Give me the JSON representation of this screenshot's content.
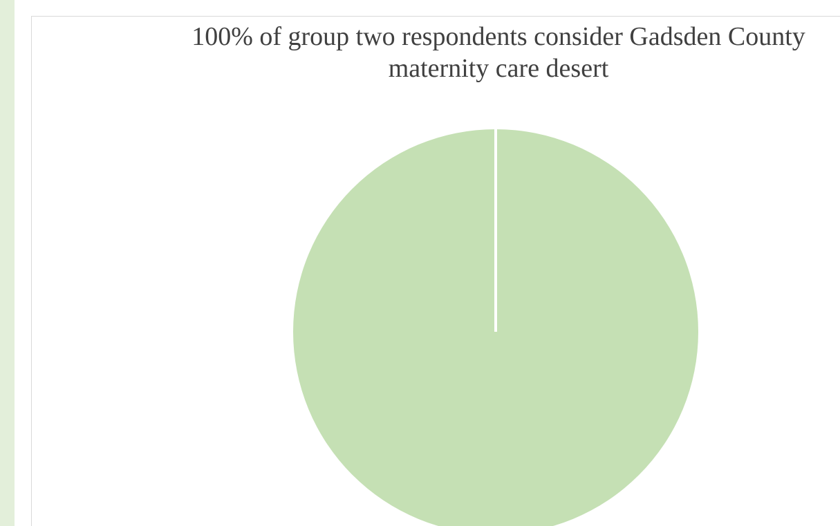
{
  "colors": {
    "sidebar": "#e3efda",
    "slice": "#c5e0b4",
    "separator": "#ffffff",
    "title_text": "#404040",
    "frame_border": "#d9d9d9"
  },
  "chart_data": {
    "type": "pie",
    "title": "100% of group two respondents consider Gadsden County maternity care desert",
    "title_lines": [
      "100% of group two respondents consider Gadsden County",
      "maternity care desert"
    ],
    "slices": [
      {
        "value": 100,
        "color": "#c5e0b4"
      },
      {
        "value": 0,
        "color": "#ffffff"
      }
    ],
    "start_angle_deg": 0,
    "legend": "none"
  }
}
